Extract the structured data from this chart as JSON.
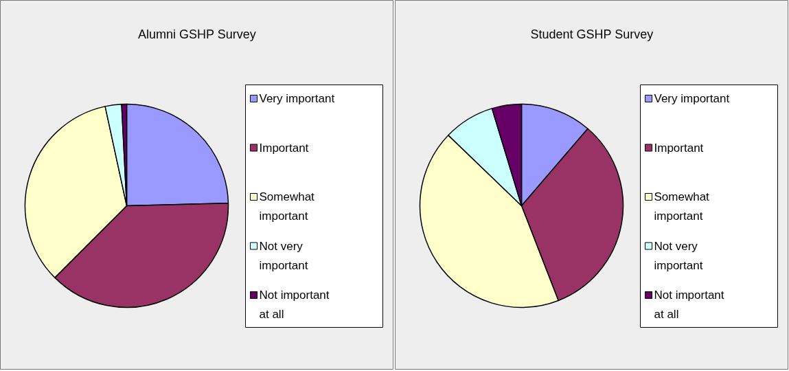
{
  "chart_data": [
    {
      "type": "pie",
      "title": "Alumni GSHP Survey",
      "categories": [
        "Very important",
        "Important",
        "Somewhat important",
        "Not very important",
        "Not important at all"
      ],
      "values": [
        24.6,
        37.9,
        34.1,
        2.6,
        0.8
      ],
      "colors": [
        "#9999ff",
        "#993366",
        "#ffffcc",
        "#ccffff",
        "#660066"
      ],
      "legend": "right"
    },
    {
      "type": "pie",
      "title": "Student GSHP Survey",
      "categories": [
        "Very important",
        "Important",
        "Somewhat important",
        "Not very important",
        "Not important at all"
      ],
      "values": [
        11.3,
        32.8,
        43.1,
        8.1,
        4.7
      ],
      "colors": [
        "#9999ff",
        "#993366",
        "#ffffcc",
        "#ccffff",
        "#660066"
      ],
      "legend": "right"
    }
  ]
}
